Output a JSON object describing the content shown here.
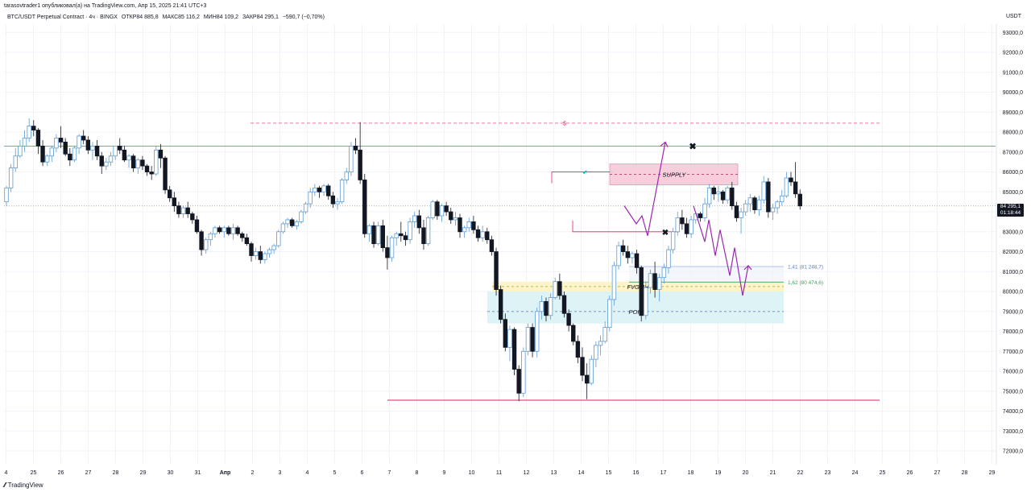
{
  "header": {
    "published_by": "tarasovtrader1 опубликовал(а) на TradingView.com, Апр 15, 2025 21:41 UTC+3",
    "symbol": "BTC/USDT Perpetual Contract · 4ч · BINGX",
    "open": "ОТКР84 885,8",
    "high": "МАКС85 116,2",
    "low": "МИН84 109,2",
    "close": "ЗАКР84 295,1",
    "change": "−590,7 (−0,70%)"
  },
  "currency": "USDT",
  "last_price": {
    "label": "84 295,1",
    "countdown": "01:18:44"
  },
  "footer": {
    "brand": "TradingView"
  },
  "colors": {
    "bull": "#5b9bd5",
    "bear": "#131722",
    "supply": "#f7c6d6",
    "poi": "#d9f2f5",
    "fvg": "#fdf3c7",
    "projection": "#9c27b0",
    "resistance": "#5c7cbc",
    "support": "#e91e63"
  },
  "chart_data": {
    "type": "candlestick",
    "yaxis": {
      "min": 71500,
      "max": 93500,
      "ticks": [
        "93000,0",
        "92000,0",
        "91000,0",
        "90000,0",
        "89000,0",
        "88000,0",
        "87000,0",
        "86000,0",
        "85000,0",
        "84000,0",
        "83000,0",
        "82000,0",
        "81000,0",
        "80000,0",
        "79000,0",
        "78000,0",
        "77000,0",
        "76000,0",
        "75000,0",
        "74000,0",
        "73000,0",
        "72000,0"
      ]
    },
    "xaxis": {
      "labels": [
        "4",
        "25",
        "26",
        "27",
        "28",
        "29",
        "30",
        "31",
        "Апр",
        "2",
        "3",
        "4",
        "5",
        "6",
        "7",
        "8",
        "9",
        "10",
        "11",
        "12",
        "13",
        "14",
        "15",
        "16",
        "17",
        "18",
        "19",
        "20",
        "21",
        "22",
        "23",
        "24",
        "25",
        "26",
        "27",
        "28",
        "29"
      ]
    },
    "grid": true,
    "annotations": {
      "supply_label": "SUPPLY",
      "fvg_label": "FVG 4H",
      "poi_label": "POI",
      "fib_141": "1,41 (81 248,7)",
      "fib_162": "1,62 (80 474,6)",
      "liquidity_mark": "$",
      "check_mark": "✔",
      "cross_mark": "✖"
    },
    "levels": {
      "resistance": 87300,
      "liquidity": 88450,
      "support": 74550,
      "supply_top": 86400,
      "supply_bottom": 85350,
      "poi_top": 80000,
      "poi_bottom": 78400,
      "fvg_top": 80500,
      "fvg_bottom": 80000,
      "fib_141": 81248.7,
      "fib_162": 80474.6,
      "last": 84295.1
    },
    "candles": [
      [
        84500,
        85300,
        84300,
        85200
      ],
      [
        85200,
        86400,
        85000,
        86200
      ],
      [
        86200,
        87200,
        86000,
        86800
      ],
      [
        86800,
        87600,
        86700,
        87300
      ],
      [
        87300,
        88100,
        87000,
        87700
      ],
      [
        87700,
        88700,
        87500,
        88300
      ],
      [
        88300,
        88600,
        87800,
        88100
      ],
      [
        88100,
        88200,
        86900,
        87300
      ],
      [
        87300,
        87600,
        86300,
        86500
      ],
      [
        86500,
        86900,
        86300,
        86800
      ],
      [
        86800,
        87300,
        86500,
        87200
      ],
      [
        87200,
        87900,
        87000,
        87700
      ],
      [
        87700,
        88300,
        87200,
        87500
      ],
      [
        87500,
        87700,
        86800,
        86900
      ],
      [
        86900,
        87200,
        86300,
        86600
      ],
      [
        86600,
        87300,
        86500,
        87200
      ],
      [
        87200,
        87900,
        86900,
        87800
      ],
      [
        87800,
        88100,
        87400,
        87600
      ],
      [
        87600,
        87800,
        86900,
        87100
      ],
      [
        87100,
        87500,
        86600,
        87300
      ],
      [
        87300,
        87600,
        86600,
        86800
      ],
      [
        86800,
        87000,
        85900,
        86300
      ],
      [
        86300,
        86700,
        86100,
        86500
      ],
      [
        86500,
        87000,
        86300,
        86800
      ],
      [
        86800,
        87300,
        86600,
        87300
      ],
      [
        87300,
        87700,
        86900,
        87100
      ],
      [
        87100,
        87300,
        86500,
        86600
      ],
      [
        86600,
        86900,
        86200,
        86800
      ],
      [
        86800,
        86900,
        86000,
        86200
      ],
      [
        86200,
        86700,
        85900,
        86600
      ],
      [
        86600,
        86800,
        86100,
        86300
      ],
      [
        86300,
        86400,
        85800,
        86000
      ],
      [
        86000,
        86300,
        85600,
        85900
      ],
      [
        85900,
        87300,
        85800,
        87100
      ],
      [
        87100,
        87400,
        86200,
        86700
      ],
      [
        86700,
        86800,
        84900,
        85100
      ],
      [
        85100,
        85300,
        84500,
        84700
      ],
      [
        84700,
        85000,
        84000,
        84300
      ],
      [
        84300,
        84500,
        83700,
        83900
      ],
      [
        83900,
        84300,
        83700,
        84200
      ],
      [
        84200,
        84500,
        83700,
        83900
      ],
      [
        83900,
        84000,
        83400,
        83600
      ],
      [
        83600,
        83800,
        82900,
        83000
      ],
      [
        83000,
        83100,
        81800,
        82100
      ],
      [
        82100,
        82700,
        81900,
        82600
      ],
      [
        82600,
        83000,
        82300,
        82900
      ],
      [
        82900,
        83300,
        82700,
        83200
      ],
      [
        83200,
        83300,
        82900,
        83000
      ],
      [
        83000,
        83300,
        82700,
        83200
      ],
      [
        83200,
        83300,
        82800,
        82900
      ],
      [
        82900,
        83400,
        82600,
        83200
      ],
      [
        83200,
        83300,
        82800,
        82900
      ],
      [
        82900,
        83000,
        82500,
        82700
      ],
      [
        82700,
        82900,
        82300,
        82400
      ],
      [
        82400,
        82500,
        81500,
        81800
      ],
      [
        81800,
        82200,
        81600,
        82000
      ],
      [
        82000,
        82300,
        81400,
        81600
      ],
      [
        81600,
        82000,
        81400,
        81900
      ],
      [
        81900,
        82200,
        81700,
        82100
      ],
      [
        82100,
        82400,
        81900,
        82300
      ],
      [
        82300,
        83100,
        82200,
        83000
      ],
      [
        83000,
        83500,
        82900,
        83400
      ],
      [
        83400,
        83700,
        83200,
        83600
      ],
      [
        83600,
        83700,
        83200,
        83300
      ],
      [
        83300,
        83600,
        83100,
        83500
      ],
      [
        83500,
        84100,
        83400,
        84000
      ],
      [
        84000,
        84500,
        83900,
        84400
      ],
      [
        84400,
        85200,
        84200,
        85000
      ],
      [
        85000,
        85400,
        84800,
        85200
      ],
      [
        85200,
        85300,
        84700,
        85000
      ],
      [
        85000,
        85400,
        84800,
        85300
      ],
      [
        85300,
        85400,
        84600,
        84800
      ],
      [
        84800,
        85000,
        84200,
        84400
      ],
      [
        84400,
        84700,
        84100,
        84500
      ],
      [
        84500,
        85700,
        84400,
        85600
      ],
      [
        85600,
        86200,
        85400,
        86000
      ],
      [
        86000,
        87500,
        85800,
        87300
      ],
      [
        87300,
        87700,
        86900,
        87100
      ],
      [
        87100,
        88500,
        85400,
        85600
      ],
      [
        85600,
        85900,
        82700,
        82900
      ],
      [
        82900,
        83400,
        82500,
        83300
      ],
      [
        83300,
        83500,
        82200,
        82400
      ],
      [
        82400,
        83500,
        82300,
        83300
      ],
      [
        83300,
        83600,
        82000,
        82200
      ],
      [
        82200,
        82800,
        81100,
        81700
      ],
      [
        81700,
        82800,
        81500,
        82700
      ],
      [
        82700,
        83000,
        82300,
        82900
      ],
      [
        82900,
        83500,
        82500,
        82800
      ],
      [
        82800,
        83000,
        82300,
        82600
      ],
      [
        82600,
        83700,
        82400,
        83500
      ],
      [
        83500,
        84000,
        83200,
        83800
      ],
      [
        83800,
        84100,
        82900,
        83200
      ],
      [
        83200,
        83600,
        82100,
        82400
      ],
      [
        82400,
        83800,
        82300,
        83700
      ],
      [
        83700,
        84600,
        83600,
        84500
      ],
      [
        84500,
        84600,
        83600,
        83800
      ],
      [
        83800,
        84400,
        83500,
        84300
      ],
      [
        84300,
        84500,
        83800,
        84000
      ],
      [
        84000,
        84200,
        83400,
        83600
      ],
      [
        83600,
        84000,
        83300,
        83700
      ],
      [
        83700,
        83900,
        82700,
        83000
      ],
      [
        83000,
        83300,
        82700,
        83200
      ],
      [
        83200,
        83700,
        83000,
        83500
      ],
      [
        83500,
        83800,
        82900,
        83100
      ],
      [
        83100,
        83300,
        82500,
        82700
      ],
      [
        82700,
        83300,
        82500,
        83000
      ],
      [
        83000,
        83200,
        82400,
        82600
      ],
      [
        82600,
        82800,
        81800,
        82000
      ],
      [
        82000,
        82200,
        79800,
        80100
      ],
      [
        80100,
        80300,
        78400,
        78600
      ],
      [
        78600,
        78900,
        77000,
        77200
      ],
      [
        77200,
        78300,
        76500,
        78100
      ],
      [
        78100,
        78200,
        75800,
        76100
      ],
      [
        76100,
        76300,
        74500,
        74900
      ],
      [
        74900,
        77200,
        74700,
        77000
      ],
      [
        77000,
        78400,
        76800,
        78200
      ],
      [
        78200,
        78400,
        76700,
        77000
      ],
      [
        77000,
        79200,
        76700,
        79000
      ],
      [
        79000,
        79800,
        78600,
        79500
      ],
      [
        79500,
        79700,
        78500,
        78800
      ],
      [
        78800,
        79900,
        78600,
        79700
      ],
      [
        79700,
        80700,
        79600,
        80500
      ],
      [
        80500,
        80900,
        79600,
        79800
      ],
      [
        79800,
        80000,
        78700,
        78900
      ],
      [
        78900,
        79100,
        78000,
        78300
      ],
      [
        78300,
        78400,
        77300,
        77500
      ],
      [
        77500,
        77800,
        76400,
        76700
      ],
      [
        76700,
        77200,
        75500,
        75800
      ],
      [
        75800,
        76400,
        74600,
        75400
      ],
      [
        75400,
        76800,
        75300,
        76600
      ],
      [
        76600,
        77500,
        76200,
        77300
      ],
      [
        77300,
        77800,
        76800,
        77500
      ],
      [
        77500,
        78500,
        77400,
        78200
      ],
      [
        78200,
        79800,
        78000,
        79600
      ],
      [
        79600,
        81500,
        79300,
        81300
      ],
      [
        81300,
        82500,
        81100,
        82300
      ],
      [
        82300,
        82600,
        81800,
        82000
      ],
      [
        82000,
        82300,
        81400,
        81700
      ],
      [
        81700,
        82000,
        81400,
        81900
      ],
      [
        81900,
        82100,
        80900,
        81200
      ],
      [
        81200,
        81300,
        78500,
        78800
      ],
      [
        78800,
        80500,
        78600,
        80200
      ],
      [
        80200,
        81100,
        79900,
        80900
      ],
      [
        80900,
        81500,
        79700,
        80100
      ],
      [
        80100,
        80900,
        79500,
        80700
      ],
      [
        80700,
        81400,
        80400,
        81200
      ],
      [
        81200,
        82300,
        80900,
        82100
      ],
      [
        82100,
        83200,
        81900,
        83000
      ],
      [
        83000,
        84000,
        82800,
        83700
      ],
      [
        83700,
        84100,
        83100,
        83400
      ],
      [
        83400,
        83700,
        82700,
        82900
      ],
      [
        82900,
        83800,
        82700,
        83600
      ],
      [
        83600,
        84000,
        83400,
        83900
      ],
      [
        83900,
        84000,
        83500,
        83700
      ],
      [
        83700,
        84700,
        83500,
        84400
      ],
      [
        84400,
        85400,
        84200,
        85200
      ],
      [
        85200,
        85300,
        84600,
        84900
      ],
      [
        84900,
        85300,
        84500,
        85000
      ],
      [
        85000,
        85100,
        84400,
        84600
      ],
      [
        84600,
        85300,
        84400,
        85200
      ],
      [
        85200,
        85500,
        84100,
        84300
      ],
      [
        84300,
        84500,
        83500,
        83700
      ],
      [
        83700,
        84200,
        82900,
        84000
      ],
      [
        84000,
        84600,
        83800,
        84400
      ],
      [
        84400,
        84900,
        84000,
        84700
      ],
      [
        84700,
        84800,
        83900,
        84100
      ],
      [
        84100,
        84800,
        83800,
        84600
      ],
      [
        84600,
        85800,
        84400,
        85500
      ],
      [
        85500,
        85700,
        83700,
        84000
      ],
      [
        84000,
        84400,
        83600,
        84200
      ],
      [
        84200,
        84600,
        83900,
        84500
      ],
      [
        84500,
        85100,
        84300,
        84800
      ],
      [
        84800,
        86000,
        84700,
        85700
      ],
      [
        85700,
        86000,
        85300,
        85500
      ],
      [
        85500,
        86500,
        84700,
        84900
      ],
      [
        84885.8,
        85116.2,
        84109.2,
        84295.1
      ]
    ]
  }
}
